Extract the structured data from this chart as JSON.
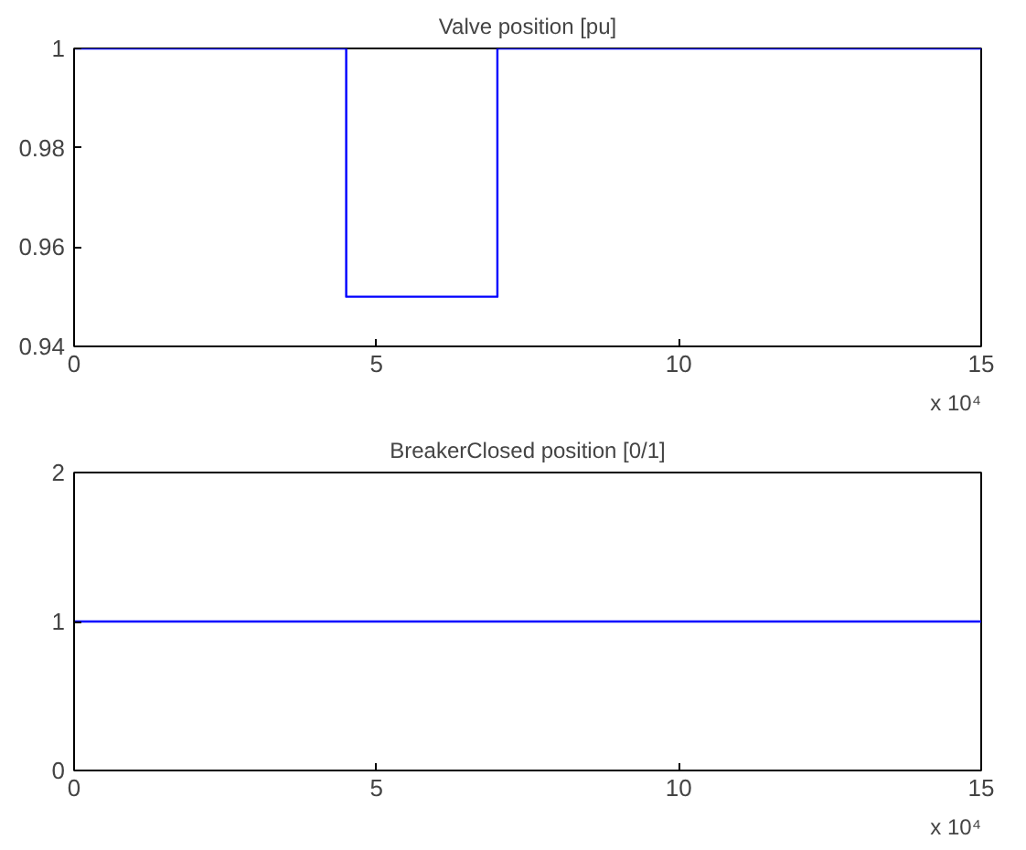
{
  "chart_data": [
    {
      "type": "line",
      "title": "Valve position [pu]",
      "x": [
        0,
        4.5,
        4.5,
        7,
        7,
        15
      ],
      "series": [
        {
          "color": "#0000ff",
          "values": [
            1,
            1,
            0.95,
            0.95,
            1,
            1
          ]
        }
      ],
      "xlim": [
        0,
        15
      ],
      "xticks": [
        0,
        5,
        10,
        15
      ],
      "ylim": [
        0.94,
        1
      ],
      "yticks": [
        0.94,
        0.96,
        0.98,
        1
      ],
      "grid": false,
      "annotations": [
        "x 10⁴"
      ]
    },
    {
      "type": "line",
      "title": "BreakerClosed position [0/1]",
      "x": [
        0,
        15
      ],
      "series": [
        {
          "color": "#0000ff",
          "values": [
            1,
            1
          ]
        }
      ],
      "xlim": [
        0,
        15
      ],
      "xticks": [
        0,
        5,
        10,
        15
      ],
      "ylim": [
        0,
        2
      ],
      "yticks": [
        0,
        1,
        2
      ],
      "grid": false,
      "annotations": [
        "x 10⁴"
      ]
    }
  ]
}
